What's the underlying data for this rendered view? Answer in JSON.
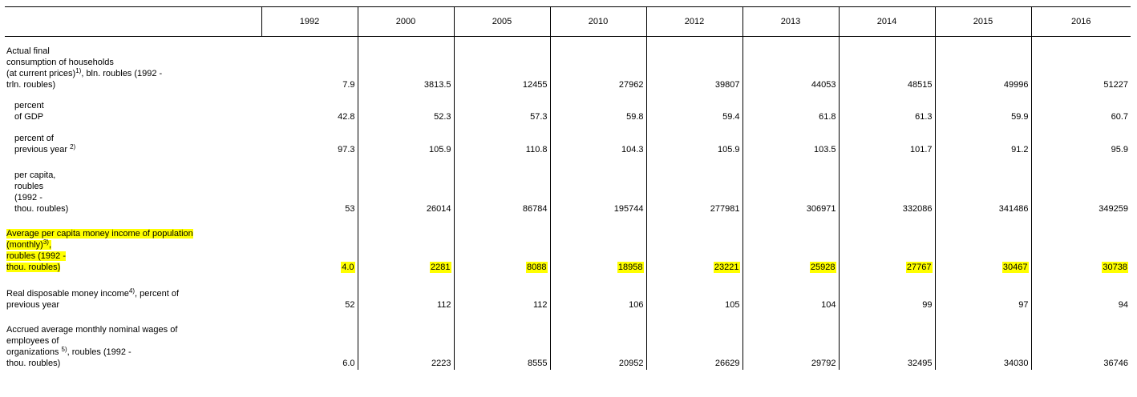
{
  "table": {
    "years": [
      "1992",
      "2000",
      "2005",
      "2010",
      "2012",
      "2013",
      "2014",
      "2015",
      "2016"
    ],
    "rows": [
      {
        "label_lines": [
          "Actual final",
          "consumption of households",
          "(at current prices)",
          ", bln. roubles (1992 -",
          "trln. roubles)"
        ],
        "footnote": "1)",
        "values": [
          "7.9",
          "3813.5",
          "12455",
          "27962",
          "39807",
          "44053",
          "48515",
          "49996",
          "51227"
        ],
        "highlight": false
      },
      {
        "label_lines": [
          "percent",
          "of GDP"
        ],
        "values": [
          "42.8",
          "52.3",
          "57.3",
          "59.8",
          "59.4",
          "61.8",
          "61.3",
          "59.9",
          "60.7"
        ],
        "highlight": false
      },
      {
        "label_lines": [
          "percent of",
          "previous year"
        ],
        "footnote": "2)",
        "values": [
          "97.3",
          "105.9",
          "110.8",
          "104.3",
          "105.9",
          "103.5",
          "101.7",
          "91.2",
          "95.9"
        ],
        "highlight": false
      },
      {
        "label_lines": [
          "per capita,",
          "roubles",
          "(1992 -",
          "thou. roubles)"
        ],
        "values": [
          "53",
          "26014",
          "86784",
          "195744",
          "277981",
          "306971",
          "332086",
          "341486",
          "349259"
        ],
        "highlight": false
      },
      {
        "label_lines": [
          "Average per capita money income of population",
          "(monthly)",
          ",",
          "roubles (1992 -",
          "thou. roubles)"
        ],
        "footnote": "3)",
        "values": [
          "4.0",
          "2281",
          "8088",
          "18958",
          "23221",
          "25928",
          "27767",
          "30467",
          "30738"
        ],
        "highlight": true,
        "highlight_color": "#ffff00"
      },
      {
        "label_lines": [
          "Real disposable  money income",
          ", percent of",
          "previous year"
        ],
        "footnote": "4)",
        "values": [
          "52",
          "112",
          "112",
          "106",
          "105",
          "104",
          "99",
          "97",
          "94"
        ],
        "highlight": false
      },
      {
        "label_lines": [
          "Accrued average  monthly nominal wages of",
          "employees of",
          "organizations",
          ", roubles (1992 -",
          "thou. roubles)"
        ],
        "footnote": "5)",
        "values": [
          "6.0",
          "2223",
          "8555",
          "20952",
          "26629",
          "29792",
          "32495",
          "34030",
          "36746"
        ],
        "highlight": false
      }
    ]
  }
}
